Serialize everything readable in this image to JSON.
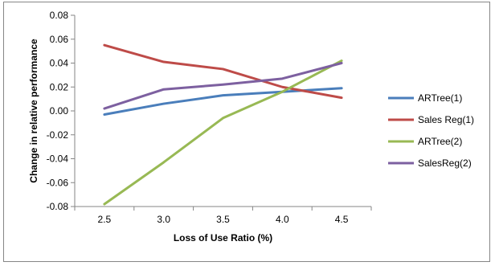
{
  "chart_data": {
    "type": "line",
    "categories": [
      "2.5",
      "3.0",
      "3.5",
      "4.0",
      "4.5"
    ],
    "xlabel": "Loss of Use Ratio (%)",
    "ylabel": "Change in relative performance",
    "ylim": [
      -0.08,
      0.08
    ],
    "yticks": [
      "0.08",
      "0.06",
      "0.04",
      "0.02",
      "0.00",
      "-0.02",
      "-0.04",
      "-0.06",
      "-0.08"
    ],
    "grid": false,
    "legend_position": "right",
    "series": [
      {
        "name": "ARTree(1)",
        "color": "#4a7ebb",
        "values": [
          -0.003,
          0.006,
          0.013,
          0.016,
          0.019
        ]
      },
      {
        "name": "Sales Reg(1)",
        "color": "#be4b48",
        "values": [
          0.055,
          0.041,
          0.035,
          0.02,
          0.011
        ]
      },
      {
        "name": "ARTree(2)",
        "color": "#98b954",
        "values": [
          -0.078,
          -0.043,
          -0.006,
          0.016,
          0.042
        ]
      },
      {
        "name": "SalesReg(2)",
        "color": "#7d60a0",
        "values": [
          0.002,
          0.018,
          0.022,
          0.027,
          0.04
        ]
      }
    ]
  }
}
